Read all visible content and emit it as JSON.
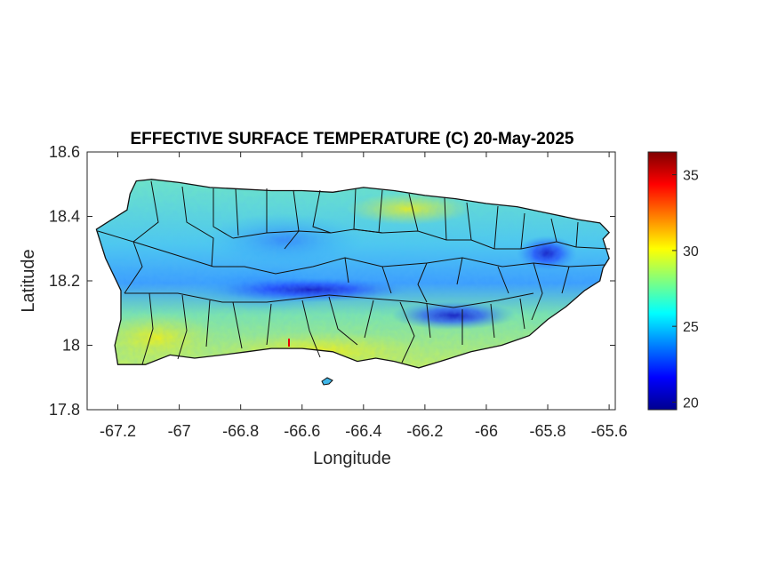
{
  "title": "EFFECTIVE SURFACE TEMPERATURE (C) 20-May-2025",
  "x_axis": {
    "label": "Longitude",
    "range": [
      -67.3,
      -65.58
    ],
    "ticks": [
      -67.2,
      -67,
      -66.8,
      -66.6,
      -66.4,
      -66.2,
      -66,
      -65.8,
      -65.6
    ],
    "tick_labels": [
      "-67.2",
      "-67",
      "-66.8",
      "-66.6",
      "-66.4",
      "-66.2",
      "-66",
      "-65.8",
      "-65.6"
    ]
  },
  "y_axis": {
    "label": "Latitude",
    "range": [
      17.8,
      18.6
    ],
    "ticks": [
      18.6,
      18.4,
      18.2,
      18,
      17.8
    ],
    "tick_labels": [
      "18.6",
      "18.4",
      "18.2",
      "18",
      "17.8"
    ]
  },
  "colorbar": {
    "colormap": "jet",
    "range": [
      19.5,
      36.5
    ],
    "ticks": [
      35,
      30,
      25,
      20
    ],
    "tick_labels": [
      "35",
      "30",
      "25",
      "20"
    ],
    "colors": [
      "#00008f",
      "#0000ff",
      "#00ffff",
      "#ffff00",
      "#ff0000",
      "#800000"
    ]
  },
  "map": {
    "region": "Puerto Rico",
    "boundary_color": "#000000",
    "cool_zone": "Cordillera Central, ~20-24 C",
    "warm_zone": "south coast, ~29-31 C"
  },
  "chart_data": {
    "type": "heatmap",
    "title": "EFFECTIVE SURFACE TEMPERATURE (C) 20-May-2025",
    "xlabel": "Longitude",
    "ylabel": "Latitude",
    "xlim": [
      -67.3,
      -65.58
    ],
    "ylim": [
      17.8,
      18.6
    ],
    "value_range": [
      19.5,
      36.5
    ],
    "colorbar_ticks": [
      20,
      25,
      30,
      35
    ],
    "grid": false
  }
}
